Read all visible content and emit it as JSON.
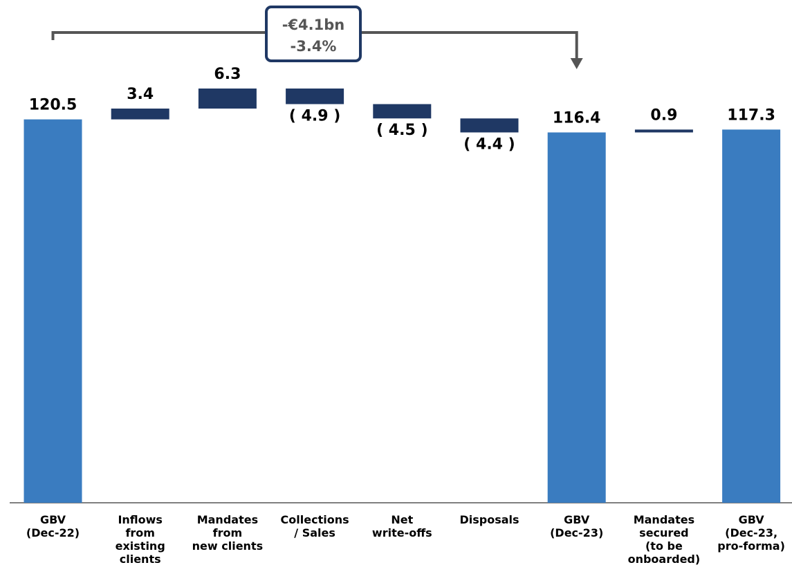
{
  "chart_data": {
    "type": "bar",
    "subtype": "waterfall",
    "categories": [
      [
        "GBV",
        "(Dec-22)"
      ],
      [
        "Inflows",
        "from",
        "existing",
        "clients"
      ],
      [
        "Mandates",
        "from",
        "new clients"
      ],
      [
        "Collections",
        "/ Sales"
      ],
      [
        "Net",
        "write-offs"
      ],
      [
        "Disposals"
      ],
      [
        "GBV",
        "(Dec-23)"
      ],
      [
        "Mandates",
        "secured",
        "(to be",
        "onboarded)"
      ],
      [
        "GBV",
        "(Dec-23,",
        "pro-forma)"
      ]
    ],
    "bars": [
      {
        "kind": "total",
        "start": 0,
        "end": 120.5,
        "label": "120.5"
      },
      {
        "kind": "delta",
        "start": 120.5,
        "end": 123.9,
        "label": "3.4"
      },
      {
        "kind": "delta",
        "start": 123.9,
        "end": 130.2,
        "label": "6.3"
      },
      {
        "kind": "delta",
        "start": 130.2,
        "end": 125.3,
        "label": "( 4.9 )"
      },
      {
        "kind": "delta",
        "start": 125.3,
        "end": 120.8,
        "label": "( 4.5 )"
      },
      {
        "kind": "delta",
        "start": 120.8,
        "end": 116.4,
        "label": "( 4.4 )"
      },
      {
        "kind": "total",
        "start": 0,
        "end": 116.4,
        "label": "116.4"
      },
      {
        "kind": "delta",
        "start": 116.4,
        "end": 117.3,
        "label": "0.9"
      },
      {
        "kind": "total",
        "start": 0,
        "end": 117.3,
        "label": "117.3"
      }
    ],
    "callout": {
      "line1": "-€4.1bn",
      "line2": "-3.4%",
      "from_index": 0,
      "to_index": 6
    },
    "colors": {
      "total": "#3a7cc0",
      "delta": "#1f3864",
      "callout": "#555555",
      "axis": "#7f7f7f"
    },
    "ylim": [
      0,
      130.2
    ],
    "grid": false,
    "legend": "none"
  }
}
